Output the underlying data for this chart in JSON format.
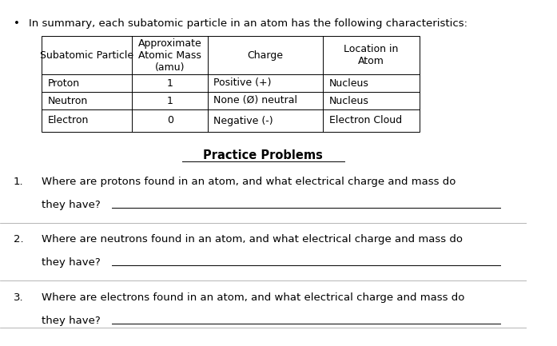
{
  "bullet_text": "In summary, each subatomic particle in an atom has the following characteristics:",
  "table_headers": [
    "Subatomic Particle",
    "Approximate\nAtomic Mass\n(amu)",
    "Charge",
    "Location in\nAtom"
  ],
  "table_rows": [
    [
      "Proton",
      "1",
      "Positive (+)",
      "Nucleus"
    ],
    [
      "Neutron",
      "1",
      "None (Ø) neutral",
      "Nucleus"
    ],
    [
      "Electron",
      "0",
      "Negative (-)",
      "Electron Cloud"
    ]
  ],
  "practice_title": "Practice Problems",
  "questions": [
    {
      "number": "1.",
      "line1": "Where are protons found in an atom, and what electrical charge and mass do",
      "line2": "they have?"
    },
    {
      "number": "2.",
      "line1": "Where are neutrons found in an atom, and what electrical charge and mass do",
      "line2": "they have?"
    },
    {
      "number": "3.",
      "line1": "Where are electrons found in an atom, and what electrical charge and mass do",
      "line2": "they have?"
    }
  ],
  "bg_color": "#ffffff",
  "text_color": "#000000",
  "font_size": 9.5,
  "title_font_size": 10.5
}
